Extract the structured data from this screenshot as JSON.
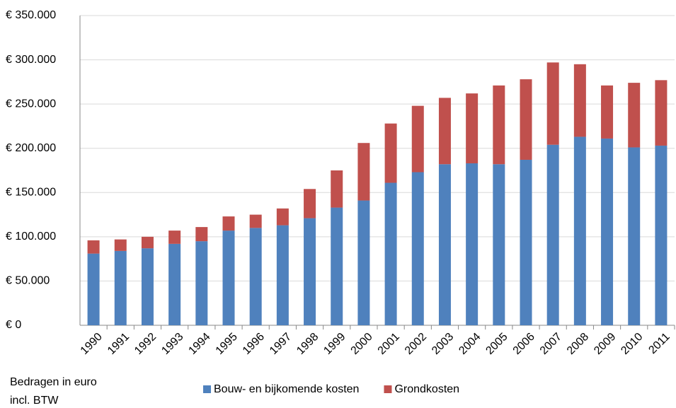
{
  "chart_data": {
    "type": "stacked_bar",
    "categories": [
      "1990",
      "1991",
      "1992",
      "1993",
      "1994",
      "1995",
      "1996",
      "1997",
      "1998",
      "1999",
      "2000",
      "2001",
      "2002",
      "2003",
      "2004",
      "2005",
      "2006",
      "2007",
      "2008",
      "2009",
      "2010",
      "2011"
    ],
    "series": [
      {
        "name": "Bouw- en bijkomende kosten",
        "color": "#4f81bd",
        "values": [
          81000,
          84000,
          87000,
          92000,
          95000,
          107000,
          110000,
          113000,
          121000,
          133000,
          141000,
          161000,
          173000,
          182000,
          183000,
          182000,
          187000,
          204000,
          213000,
          211000,
          201000,
          203000
        ]
      },
      {
        "name": "Grondkosten",
        "color": "#c0504d",
        "values": [
          15000,
          13000,
          13000,
          15000,
          16000,
          16000,
          15000,
          19000,
          33000,
          42000,
          65000,
          67000,
          75000,
          75000,
          79000,
          89000,
          91000,
          93000,
          82000,
          60000,
          73000,
          74000
        ]
      }
    ],
    "ylim": [
      0,
      350000
    ],
    "yticks": [
      {
        "value": 0,
        "label": "€ 0"
      },
      {
        "value": 50000,
        "label": "€ 50.000"
      },
      {
        "value": 100000,
        "label": "€ 100.000"
      },
      {
        "value": 150000,
        "label": "€ 150.000"
      },
      {
        "value": 200000,
        "label": "€ 200.000"
      },
      {
        "value": 250000,
        "label": "€ 250.000"
      },
      {
        "value": 300000,
        "label": "€ 300.000"
      },
      {
        "value": 350000,
        "label": "€ 350.000"
      }
    ],
    "grid": true,
    "note": [
      "Bedragen  in euro",
      "incl. BTW"
    ]
  }
}
